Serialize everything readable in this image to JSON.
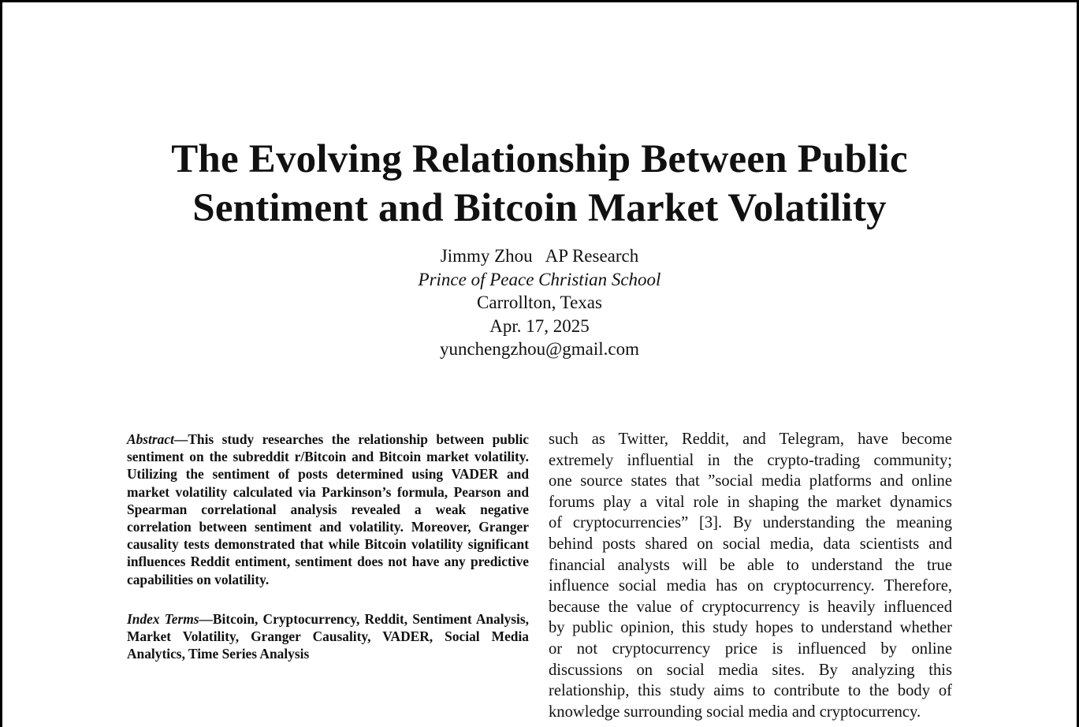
{
  "paper": {
    "title_lines": [
      "The Evolving Relationship Between Public",
      "Sentiment and Bitcoin Market Volatility"
    ],
    "author_line": "Jimmy Zhou   AP Research",
    "affiliation": "Prince of Peace Christian School",
    "location": "Carrollton, Texas",
    "date": "Apr. 17, 2025",
    "email": "yunchengzhou@gmail.com"
  },
  "abstract": {
    "label": "Abstract",
    "dash": "—",
    "text": "This study researches the relationship between public sentiment on the subreddit r/Bitcoin and Bitcoin market volatility. Utilizing the sentiment of posts determined using VADER and market volatility calculated via Parkinson’s formula, Pearson and Spearman correlational analysis revealed a weak negative correlation between sentiment and volatility. Moreover, Granger causality tests demonstrated that while Bitcoin volatility significant influences Reddit entiment, sentiment does not have any predictive capabilities on volatility."
  },
  "index_terms": {
    "label": "Index Terms",
    "dash": "—",
    "text": "Bitcoin, Cryptocurrency, Reddit, Sentiment Analysis, Market Volatility, Granger Causality, VADER, Social Media Analytics, Time Series Analysis"
  },
  "body_right": {
    "lines": [
      "such as Twitter, Reddit, and Telegram, have become",
      "extremely influential in the crypto-trading community;",
      "one source states that ”social media platforms and online",
      "forums play a vital role in shaping the market dynamics",
      "of cryptocurrencies” [3]. By understanding the meaning",
      "behind posts shared on social media, data scientists and",
      "financial analysts will be able to understand the true",
      "influence social media has on cryptocurrency. Therefore,",
      "because the value of cryptocurrency is heavily influenced",
      "by public opinion, this study hopes to understand whether",
      "or not cryptocurrency price is influenced by online",
      "discussions on social media sites. By analyzing this",
      "relationship, this study aims to contribute to the body of",
      "knowledge surrounding social media and cryptocurrency."
    ]
  }
}
